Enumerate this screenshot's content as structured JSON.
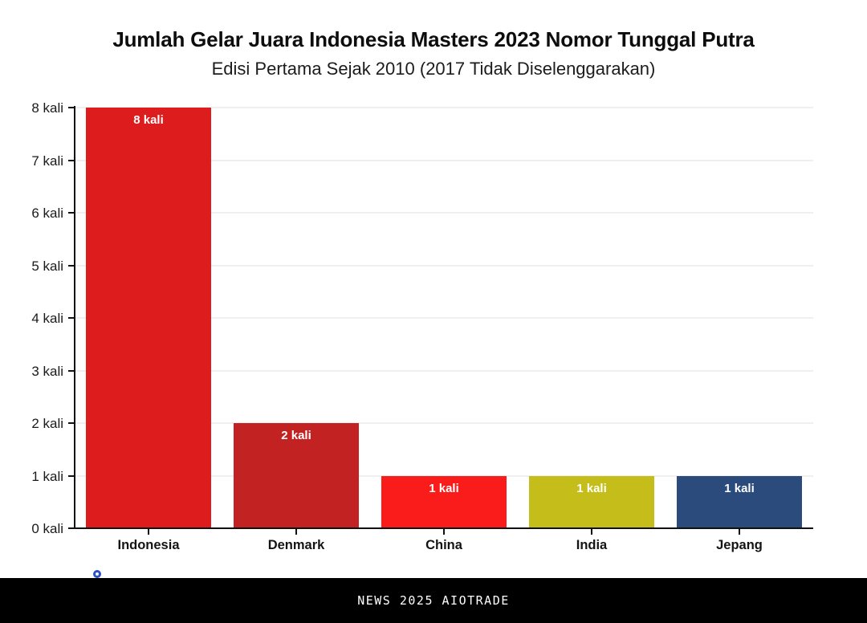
{
  "header": {
    "title": "Jumlah Gelar Juara Indonesia Masters 2023 Nomor Tunggal Putra",
    "subtitle": "Edisi Pertama Sejak 2010 (2017 Tidak Diselenggarakan)"
  },
  "chart_data": {
    "type": "bar",
    "title": "Jumlah Gelar Juara Indonesia Masters 2023 Nomor Tunggal Putra",
    "subtitle": "Edisi Pertama Sejak 2010 (2017 Tidak Diselenggarakan)",
    "categories": [
      "Indonesia",
      "Denmark",
      "China",
      "India",
      "Jepang"
    ],
    "values": [
      8,
      2,
      1,
      1,
      1
    ],
    "bar_labels": [
      "8 kali",
      "2 kali",
      "1 kali",
      "1 kali",
      "1 kali"
    ],
    "bar_colors": [
      "#dd1d1d",
      "#c22222",
      "#fa1b1b",
      "#c4bd1a",
      "#2b4b7c"
    ],
    "y_ticks": [
      "0 kali",
      "1 kali",
      "2 kali",
      "3 kali",
      "4 kali",
      "5 kali",
      "6 kali",
      "7 kali",
      "8 kali"
    ],
    "ylim": [
      0,
      8
    ],
    "xlabel": "",
    "ylabel": "",
    "grid": true,
    "legend": "none",
    "value_label_position": "inside-top",
    "axis_color": "#111111",
    "grid_color": "#efefef"
  },
  "footer": {
    "watermark": "NEWS 2025 AIOTRADE",
    "bar_color": "#000000",
    "logo_color": "#2b51c4"
  }
}
